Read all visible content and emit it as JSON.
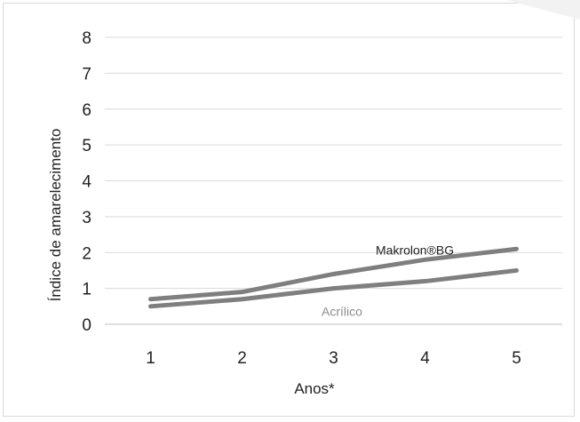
{
  "chart_data": {
    "type": "line",
    "title": "",
    "xlabel": "Anos*",
    "ylabel": "Índice de amarelecimento",
    "categories": [
      "1",
      "2",
      "3",
      "4",
      "5"
    ],
    "yticks": [
      "0",
      "1",
      "2",
      "3",
      "4",
      "5",
      "6",
      "7",
      "8"
    ],
    "ylim": [
      0,
      8
    ],
    "grid": true,
    "legend": "none",
    "series": [
      {
        "name": "Makrolon®BG",
        "values": [
          0.7,
          0.9,
          1.4,
          1.8,
          2.1
        ],
        "color": "#7f7f7f",
        "label_color": "#222222"
      },
      {
        "name": "Acrílico",
        "values": [
          0.5,
          0.7,
          1.0,
          1.2,
          1.5
        ],
        "color": "#7f7f7f",
        "label_color": "#8c8c8c"
      }
    ]
  }
}
